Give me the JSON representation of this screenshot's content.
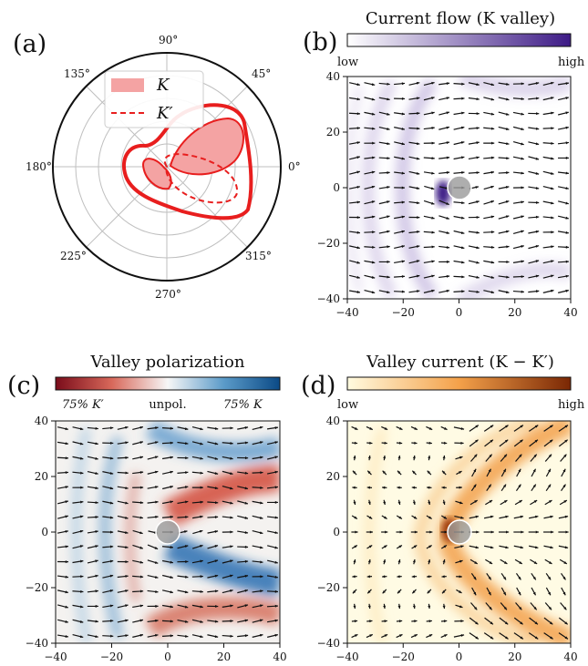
{
  "panels": {
    "a": {
      "label": "(a)",
      "angle_labels": [
        "90°",
        "45°",
        "0°",
        "315°",
        "270°",
        "225°",
        "180°",
        "135°"
      ],
      "legend": {
        "k": "K",
        "kp": "K′"
      }
    },
    "b": {
      "label": "(b)",
      "title": "Current flow  (K valley)",
      "colorbar": {
        "low": "low",
        "high": "high",
        "colors": [
          "#ffffff",
          "#3d1a86"
        ]
      }
    },
    "c": {
      "label": "(c)",
      "title": "Valley polarization",
      "colorbar": {
        "left": "75% K′",
        "center": "unpol.",
        "right": "75% K",
        "colors": [
          "#7a0c1a",
          "#f7f7f7",
          "#0b4a86"
        ]
      }
    },
    "d": {
      "label": "(d)",
      "title": "Valley current  (K − K′)",
      "colorbar": {
        "low": "low",
        "high": "high",
        "colors": [
          "#fffbe0",
          "#7a2704"
        ]
      }
    }
  },
  "chart_data": [
    {
      "panel": "a",
      "type": "polar",
      "series": [
        {
          "name": "K",
          "style": "filled",
          "lobes": [
            {
              "angle_deg": 40,
              "r": 0.78
            },
            {
              "angle_deg": 200,
              "r": 0.25
            }
          ]
        },
        {
          "name": "K′",
          "style": "dashed",
          "lobes": [
            {
              "angle_deg": 350,
              "r": 0.75
            },
            {
              "angle_deg": 170,
              "r": 0.2
            }
          ]
        }
      ]
    },
    {
      "panel": "b",
      "type": "heatmap",
      "xlim": [
        -40,
        40
      ],
      "ylim": [
        -40,
        40
      ],
      "x_ticks": [
        "−40",
        "−20",
        "0",
        "20",
        "40"
      ],
      "y_ticks": [
        "40",
        "20",
        "0",
        "−20",
        "−40"
      ],
      "obstacle": {
        "x": 0,
        "y": 0,
        "r": 4
      }
    },
    {
      "panel": "c",
      "type": "heatmap",
      "xlim": [
        -40,
        40
      ],
      "ylim": [
        -40,
        40
      ],
      "x_ticks": [
        "−40",
        "−20",
        "0",
        "20",
        "40"
      ],
      "y_ticks": [
        "40",
        "20",
        "0",
        "−20",
        "−40"
      ],
      "obstacle": {
        "x": 0,
        "y": 0,
        "r": 4
      }
    },
    {
      "panel": "d",
      "type": "heatmap",
      "xlim": [
        -40,
        40
      ],
      "ylim": [
        -40,
        40
      ],
      "x_ticks": [
        "−40",
        "−20",
        "0",
        "20",
        "40"
      ],
      "y_ticks": [
        "40",
        "20",
        "0",
        "−20",
        "−40"
      ],
      "obstacle": {
        "x": 0,
        "y": 0,
        "r": 4
      }
    }
  ]
}
